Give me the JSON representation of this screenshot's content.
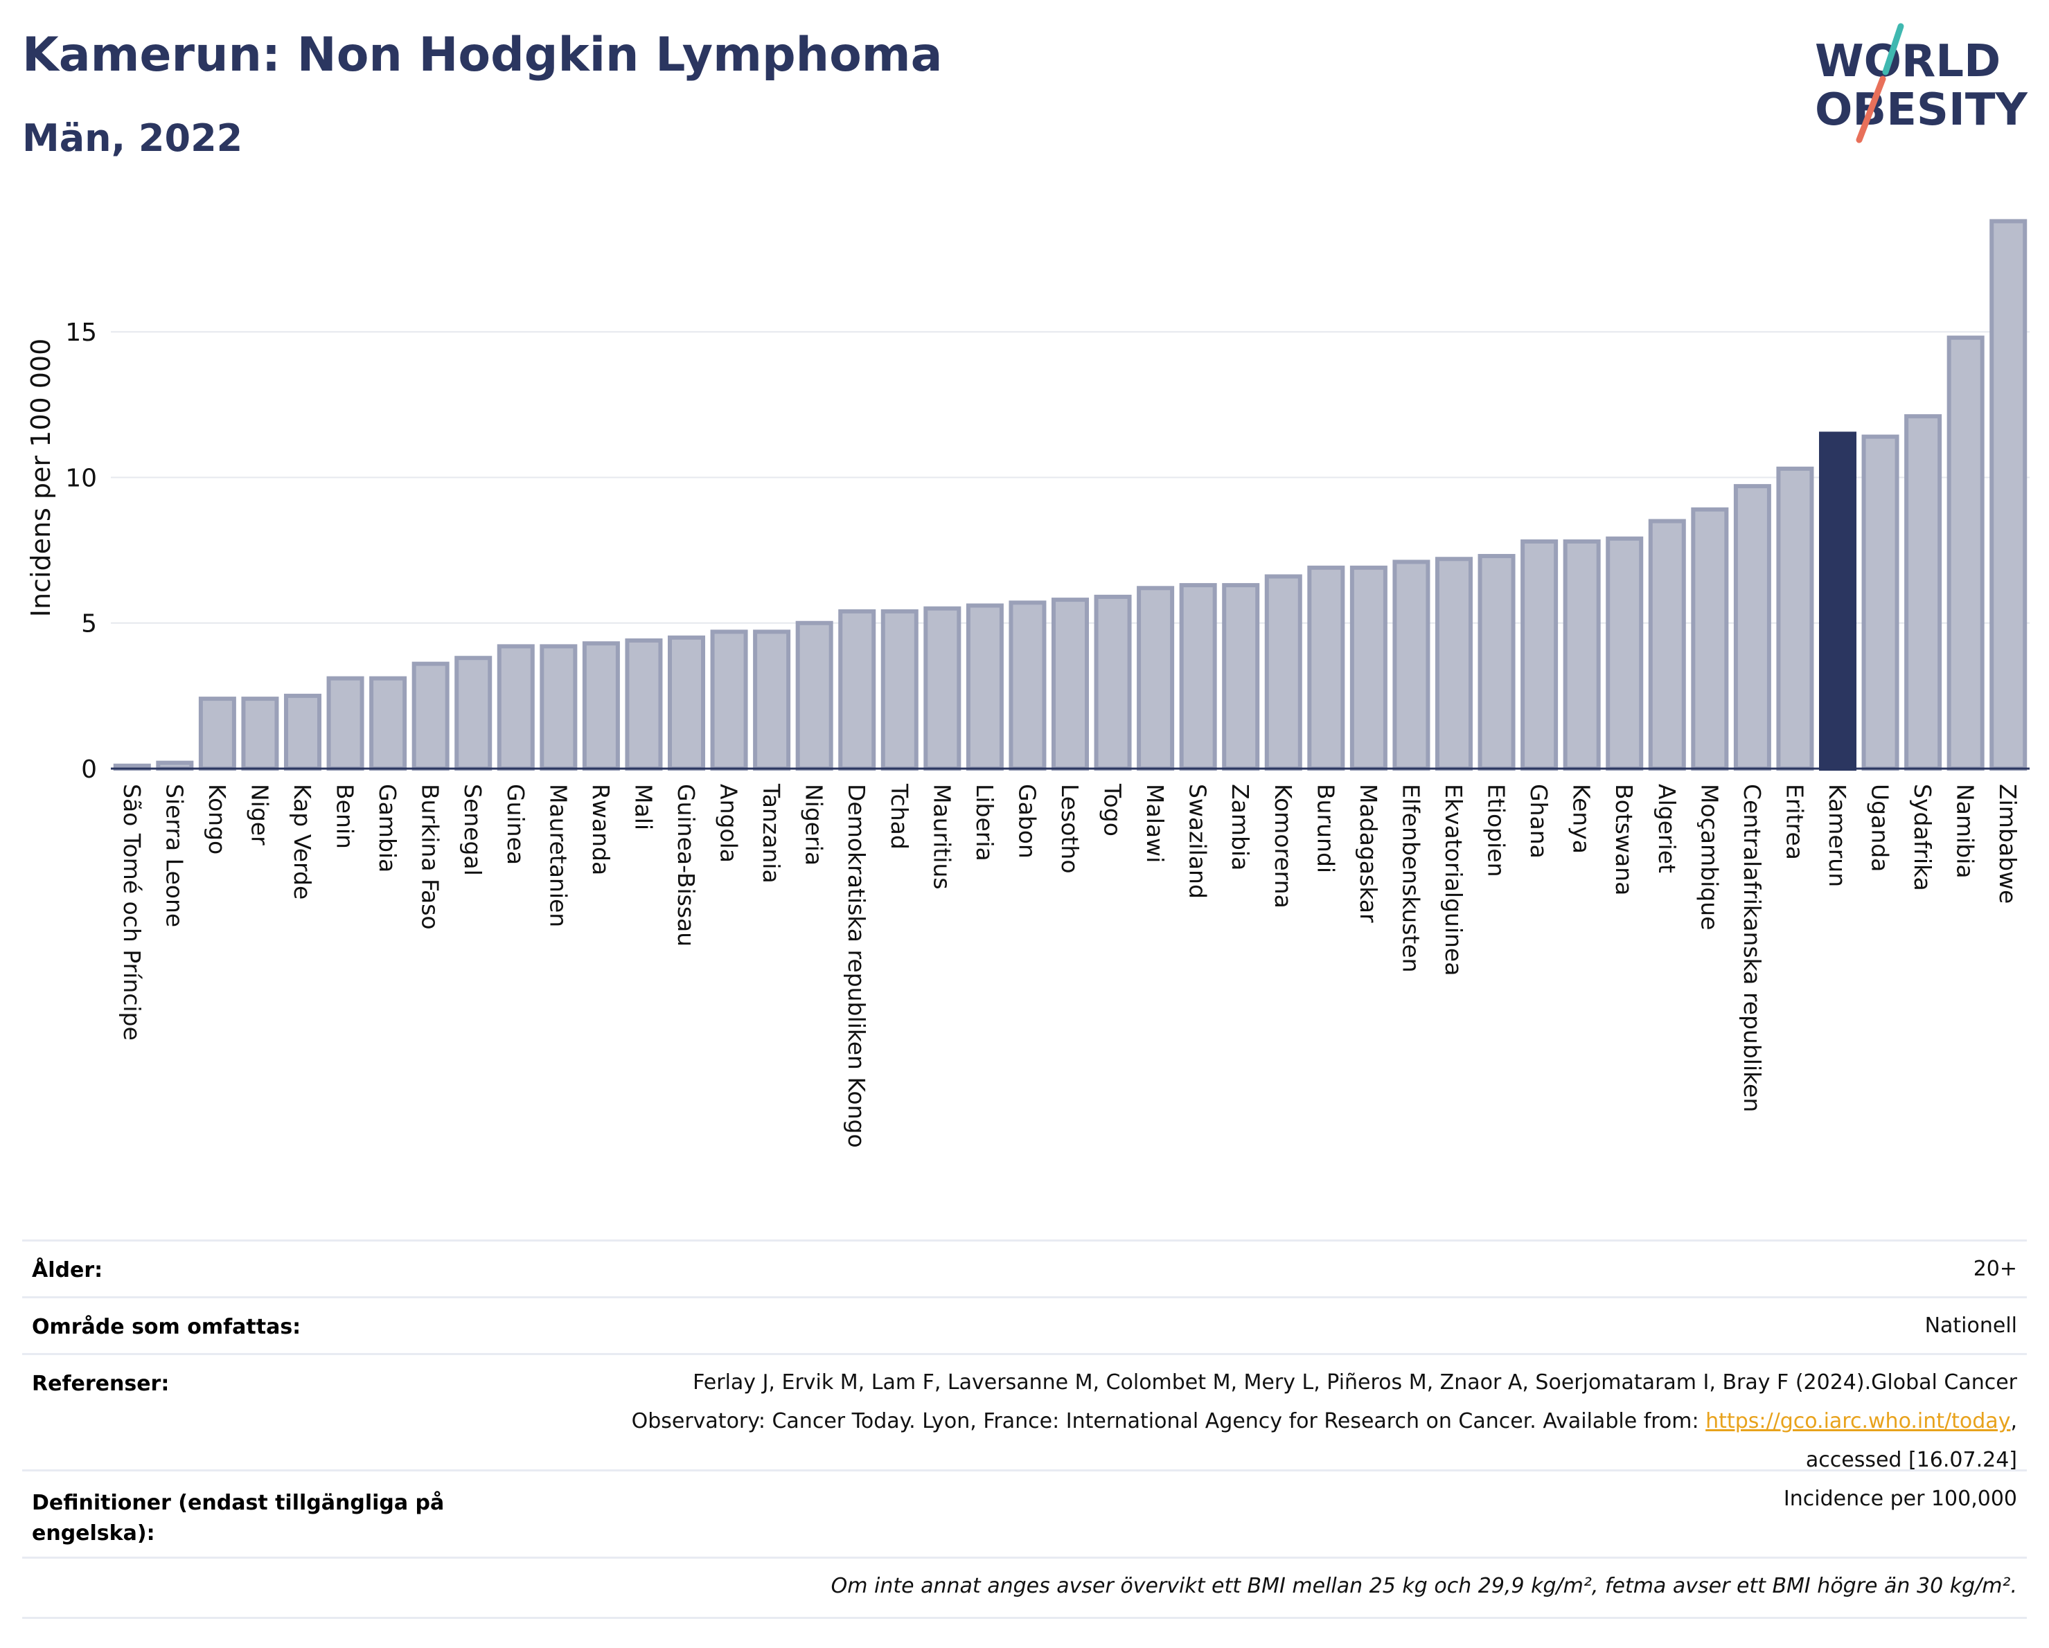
{
  "header": {
    "title": "Kamerun: Non Hodgkin Lymphoma",
    "subtitle": "Män, 2022"
  },
  "logo": {
    "line1": "WORLD",
    "line2": "OBESITY",
    "colors": {
      "text": "#2b3660",
      "slash_top": "#3fb8b0",
      "slash_bottom": "#e8705a"
    }
  },
  "chart_data": {
    "type": "bar",
    "ylabel": "Incidens per 100 000",
    "xlabel": "",
    "ylim": [
      0,
      19.5
    ],
    "yticks": [
      0,
      5,
      10,
      15
    ],
    "grid": true,
    "highlight": "Kamerun",
    "colors": {
      "bar": "#b9bdcc",
      "bar_edge": "#9aa0b8",
      "highlight": "#2b3660",
      "grid": "#e6e8ee"
    },
    "categories": [
      "São Tomé och Príncipe",
      "Sierra Leone",
      "Kongo",
      "Niger",
      "Kap Verde",
      "Benin",
      "Gambia",
      "Burkina Faso",
      "Senegal",
      "Guinea",
      "Mauretanien",
      "Rwanda",
      "Mali",
      "Guinea-Bissau",
      "Angola",
      "Tanzania",
      "Nigeria",
      "Demokratiska republiken Kongo",
      "Tchad",
      "Mauritius",
      "Liberia",
      "Gabon",
      "Lesotho",
      "Togo",
      "Malawi",
      "Swaziland",
      "Zambia",
      "Komorerna",
      "Burundi",
      "Madagaskar",
      "Elfenbenskusten",
      "Ekvatorialguinea",
      "Etiopien",
      "Ghana",
      "Kenya",
      "Botswana",
      "Algeriet",
      "Moçambique",
      "Centralafrikanska republiken",
      "Eritrea",
      "Kamerun",
      "Uganda",
      "Sydafrika",
      "Namibia",
      "Zimbabwe"
    ],
    "values": [
      0.1,
      0.2,
      2.4,
      2.4,
      2.5,
      3.1,
      3.1,
      3.6,
      3.8,
      4.2,
      4.2,
      4.3,
      4.4,
      4.5,
      4.7,
      4.7,
      5.0,
      5.4,
      5.4,
      5.5,
      5.6,
      5.7,
      5.8,
      5.9,
      6.2,
      6.3,
      6.3,
      6.6,
      6.9,
      6.9,
      7.1,
      7.2,
      7.3,
      7.8,
      7.8,
      7.9,
      8.5,
      8.9,
      9.7,
      10.3,
      11.5,
      11.4,
      12.1,
      14.8,
      18.8
    ]
  },
  "info": {
    "age": {
      "label": "Ålder:",
      "value": "20+"
    },
    "area": {
      "label": "Område som omfattas:",
      "value": "Nationell"
    },
    "references": {
      "label": "Referenser:",
      "line1": "Ferlay J, Ervik M, Lam F, Laversanne M, Colombet M, Mery L, Piñeros M, Znaor A, Soerjomataram I, Bray F (2024).Global Cancer",
      "line2_prefix": "Observatory: Cancer Today. Lyon, France: International Agency for Research on Cancer. Available from: ",
      "link": "https://gco.iarc.who.int/today",
      "line2_suffix": ",",
      "line3": "accessed [16.07.24]"
    },
    "definitions": {
      "label_line1": "Definitioner (endast tillgängliga på",
      "label_line2": "engelska):",
      "value": "Incidence per 100,000"
    },
    "note": "Om inte annat anges avser övervikt ett BMI mellan 25 kg och 29,9 kg/m², fetma avser ett BMI högre än 30 kg/m²."
  }
}
